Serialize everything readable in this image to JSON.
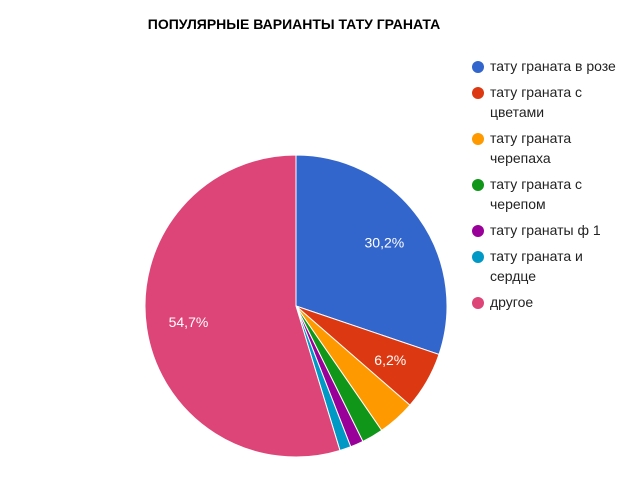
{
  "chart_data": {
    "type": "pie",
    "title": "ПОПУЛЯРНЫЕ ВАРИАНТЫ ТАТУ ГРАНАТА",
    "legend_position": "right",
    "slices": [
      {
        "label": "тату граната в розе",
        "value": 30.2,
        "color": "#3366cc",
        "data_label": "30,2%"
      },
      {
        "label": "тату граната с цветами",
        "value": 6.2,
        "color": "#dc3912",
        "data_label": "6,2%"
      },
      {
        "label": "тату граната черепаха",
        "value": 4.0,
        "color": "#ff9900",
        "data_label": ""
      },
      {
        "label": "тату граната с черепом",
        "value": 2.3,
        "color": "#109618",
        "data_label": ""
      },
      {
        "label": "тату гранаты ф 1",
        "value": 1.4,
        "color": "#990099",
        "data_label": ""
      },
      {
        "label": "тату граната и сердце",
        "value": 1.2,
        "color": "#0099c6",
        "data_label": ""
      },
      {
        "label": "другое",
        "value": 54.7,
        "color": "#dd4477",
        "data_label": "54,7%"
      }
    ]
  }
}
